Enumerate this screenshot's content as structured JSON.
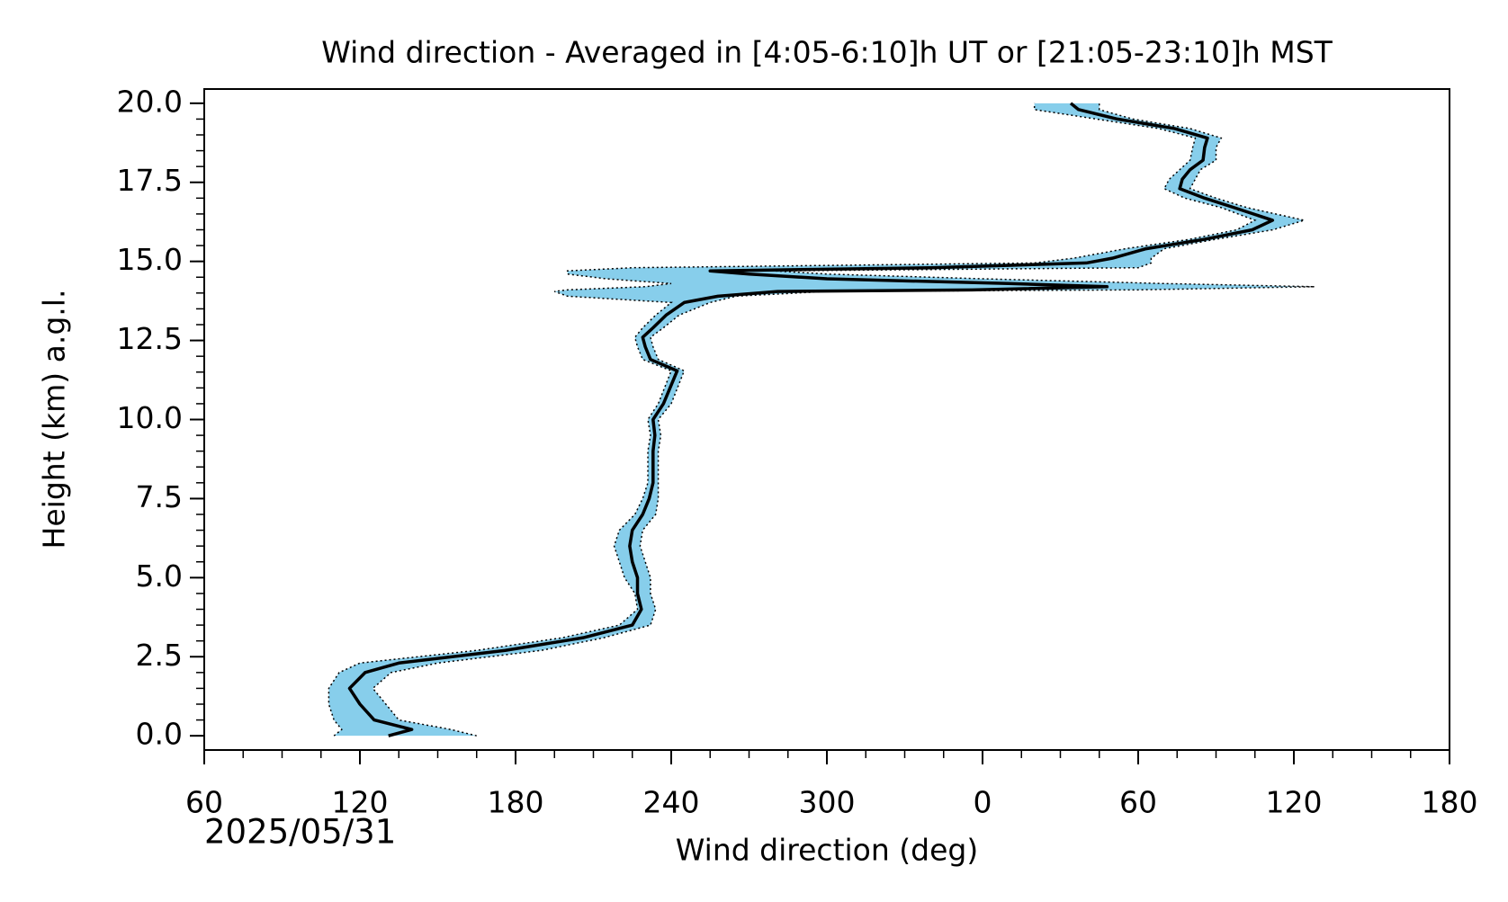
{
  "chart_data": {
    "type": "line",
    "title": "Wind direction - Averaged in [4:05-6:10]h UT or [21:05-23:10]h MST",
    "xlabel": "Wind direction (deg)",
    "ylabel": "Height (km) a.g.l.",
    "annotation": "2025/05/31",
    "y": [
      0.0,
      0.2,
      0.5,
      1.0,
      1.5,
      2.0,
      2.3,
      2.7,
      3.1,
      3.5,
      4.0,
      4.5,
      5.0,
      5.5,
      6.0,
      6.5,
      7.0,
      7.5,
      8.0,
      9.0,
      9.5,
      10.0,
      10.5,
      11.54,
      11.9,
      12.3,
      12.6,
      12.9,
      13.3,
      13.7,
      13.9,
      14.05,
      14.1,
      14.2,
      14.3,
      14.45,
      14.6,
      14.7,
      14.8,
      14.95,
      15.1,
      15.4,
      15.7,
      16.0,
      16.3,
      16.7,
      17.0,
      17.3,
      17.6,
      17.9,
      18.2,
      18.6,
      18.9,
      19.2,
      19.5,
      19.8,
      20.0
    ],
    "series": [
      {
        "color": "#000000",
        "values": [
          131,
          140,
          125.5,
          120,
          116,
          122,
          135,
          176,
          206,
          225,
          228.5,
          227,
          227,
          225,
          224,
          225,
          229,
          231.5,
          233,
          233,
          233.7,
          233,
          237,
          242.3,
          232,
          230,
          229,
          233,
          238,
          245,
          258,
          281,
          356,
          408,
          370,
          300,
          270,
          255,
          340,
          400,
          410,
          423,
          445.6,
          464,
          471.8,
          457,
          445.6,
          436,
          437,
          440,
          445,
          445.6,
          446.7,
          434,
          412,
          397,
          394
        ]
      }
    ],
    "band": {
      "color": "#87ceeb",
      "lower": [
        110,
        113,
        110,
        108,
        108,
        112,
        120,
        165,
        198,
        220,
        227,
        226,
        222,
        220,
        218,
        220,
        226,
        229,
        231,
        231,
        232,
        231,
        235,
        240,
        229,
        227,
        226,
        229,
        234,
        240,
        200,
        195,
        200,
        230,
        240,
        215,
        200,
        200,
        225,
        380,
        395,
        415,
        440,
        458,
        465,
        452,
        438,
        430,
        432,
        436,
        440,
        441,
        442,
        428,
        404,
        380,
        380
      ],
      "upper": [
        165,
        155,
        135,
        130,
        125,
        132,
        150,
        190,
        214,
        232,
        234,
        232,
        232,
        230,
        228,
        229,
        234,
        235,
        235,
        235,
        236,
        235,
        240,
        245,
        235,
        233,
        232,
        237,
        243,
        255,
        265,
        300,
        420,
        488,
        430,
        360,
        300,
        280,
        420,
        425,
        425,
        430,
        450,
        472,
        484,
        462,
        450,
        440,
        442,
        444,
        450,
        450,
        452,
        440,
        418,
        405,
        405
      ]
    },
    "xlim": [
      60,
      540
    ],
    "xticks": [
      60,
      120,
      180,
      240,
      300,
      {
        "value": 360,
        "label": "0"
      },
      {
        "value": 420,
        "label": "60"
      },
      {
        "value": 480,
        "label": "120"
      },
      {
        "value": 540,
        "label": "180"
      }
    ],
    "ylim": [
      -0.45,
      20.45
    ],
    "yticks": [
      {
        "value": 0,
        "label": "0.0"
      },
      2.5,
      {
        "value": 5,
        "label": "5.0"
      },
      7.5,
      {
        "value": 10,
        "label": "10.0"
      },
      12.5,
      {
        "value": 15,
        "label": "15.0"
      },
      17.5,
      {
        "value": 20,
        "label": "20.0"
      }
    ],
    "minor_ticks": {
      "x": 15,
      "y": 0.5
    }
  }
}
